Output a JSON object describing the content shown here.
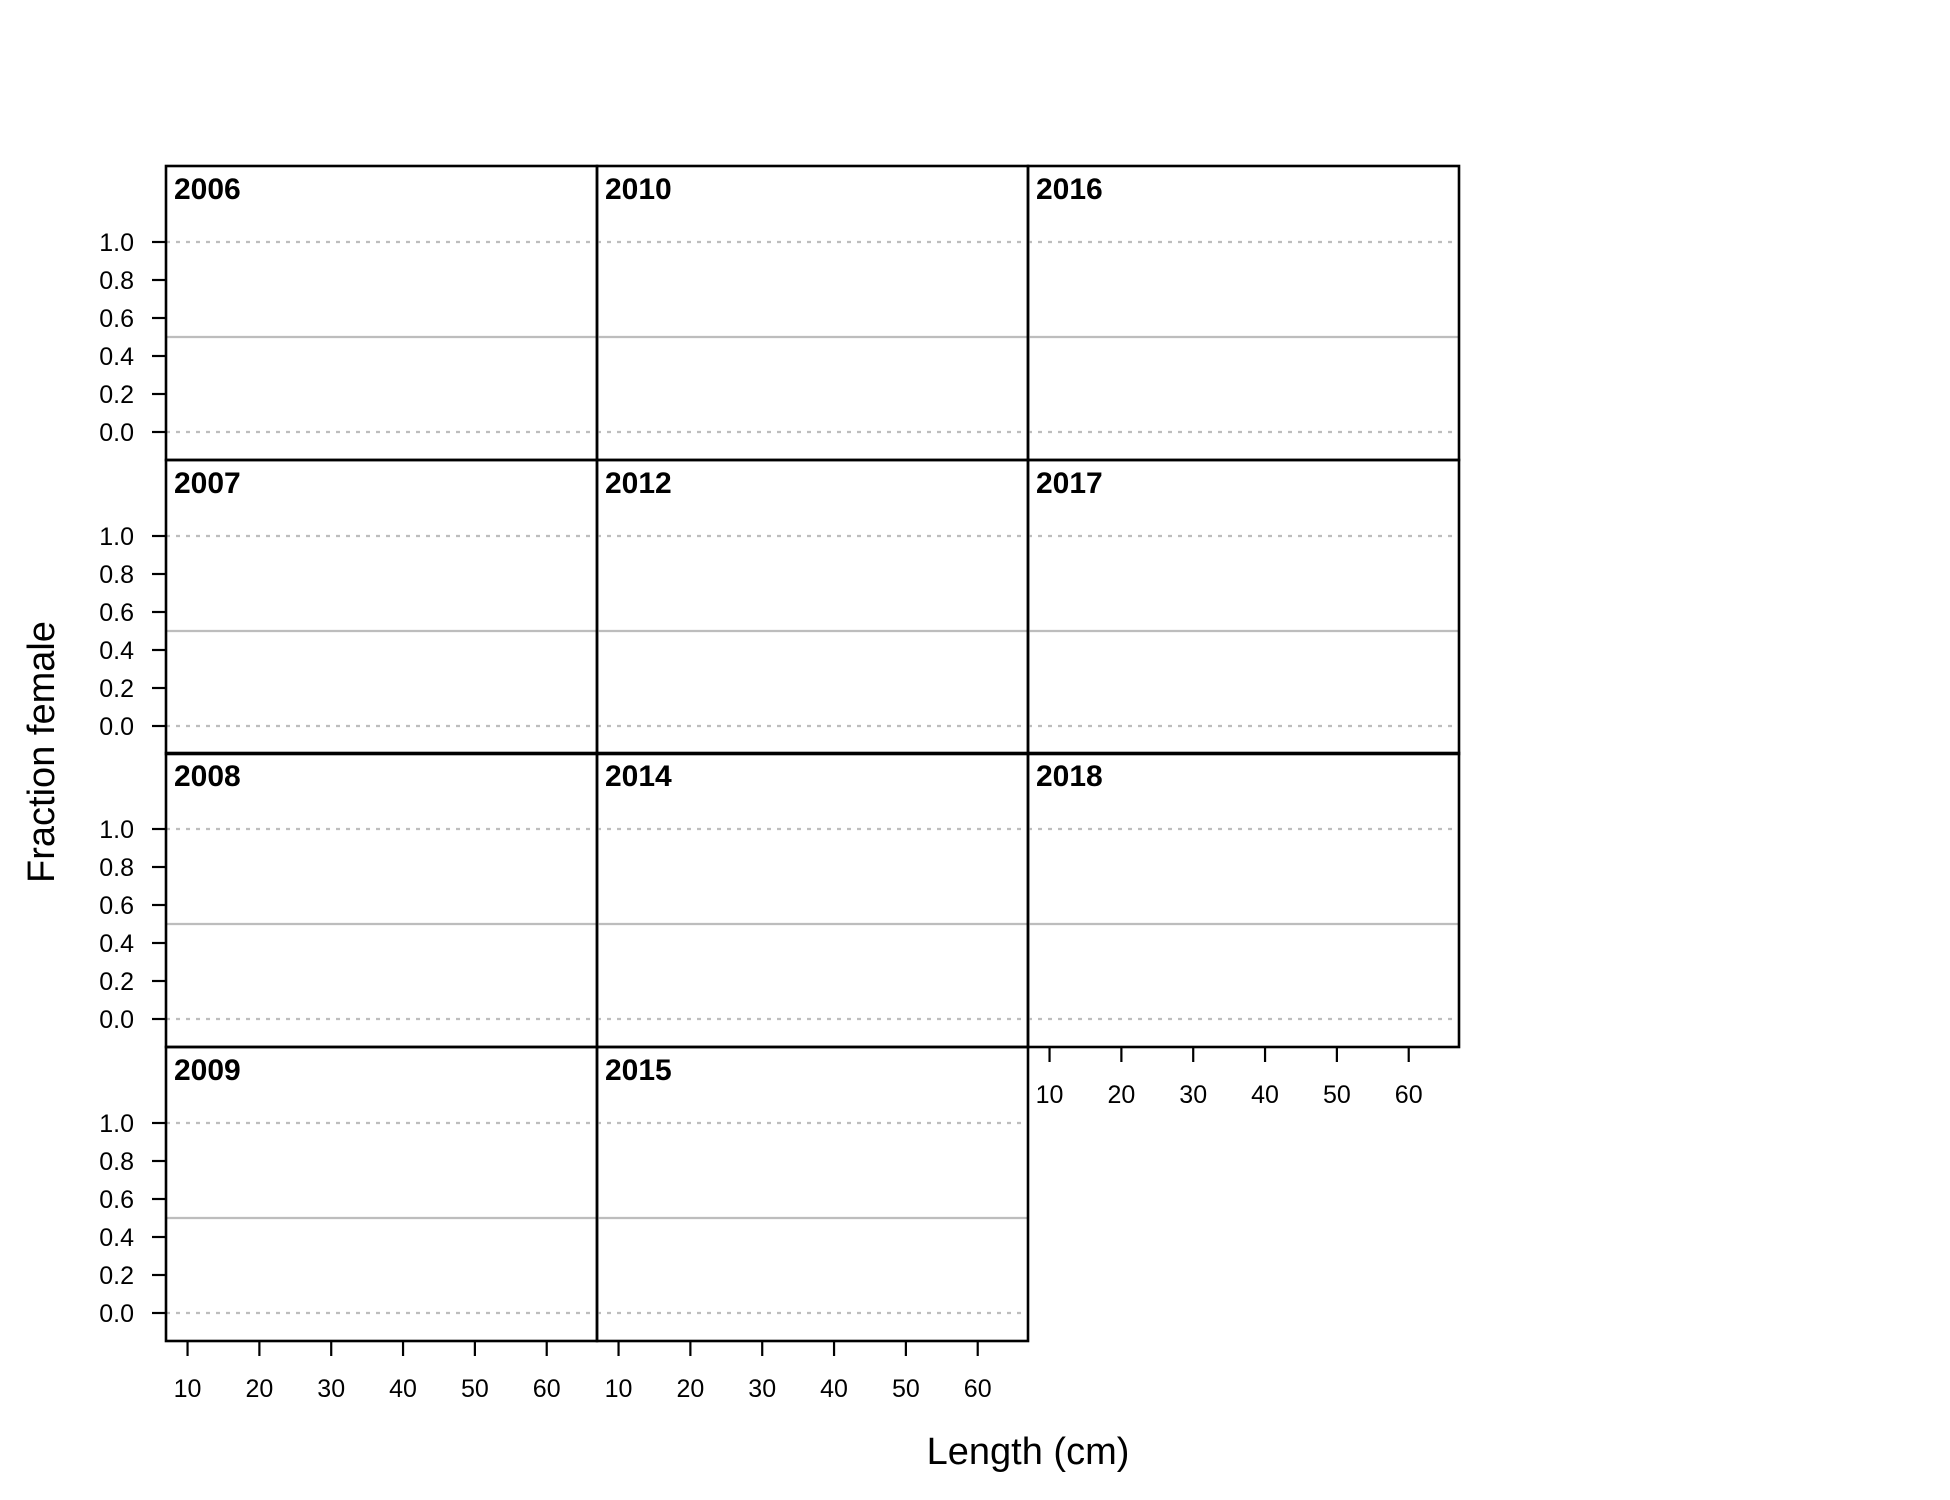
{
  "chart_data": {
    "type": "line",
    "layout": "small-multiples",
    "xlabel": "Length (cm)",
    "ylabel": "Fraction female",
    "xlim": [
      7,
      67
    ],
    "ylim": [
      0,
      1
    ],
    "x_ticks": [
      10,
      20,
      30,
      40,
      50,
      60
    ],
    "y_ticks": [
      0.0,
      0.2,
      0.4,
      0.6,
      0.8,
      1.0
    ],
    "y_tick_labels": [
      "0.0",
      "0.2",
      "0.4",
      "0.6",
      "0.8",
      "1.0"
    ],
    "reference_lines": [
      {
        "y": 0.5,
        "style": "solid",
        "color": "#bdbdbd"
      },
      {
        "y": 0.0,
        "style": "dotted",
        "color": "#bdbdbd"
      },
      {
        "y": 1.0,
        "style": "dotted",
        "color": "#bdbdbd"
      }
    ],
    "panels": [
      {
        "year": "2006",
        "column": 0,
        "row": 0
      },
      {
        "year": "2007",
        "column": 0,
        "row": 1
      },
      {
        "year": "2008",
        "column": 0,
        "row": 2
      },
      {
        "year": "2009",
        "column": 0,
        "row": 3
      },
      {
        "year": "2010",
        "column": 1,
        "row": 0
      },
      {
        "year": "2012",
        "column": 1,
        "row": 1
      },
      {
        "year": "2014",
        "column": 1,
        "row": 2
      },
      {
        "year": "2015",
        "column": 1,
        "row": 3
      },
      {
        "year": "2016",
        "column": 2,
        "row": 0
      },
      {
        "year": "2017",
        "column": 2,
        "row": 1
      },
      {
        "year": "2018",
        "column": 2,
        "row": 2
      }
    ],
    "series": []
  }
}
